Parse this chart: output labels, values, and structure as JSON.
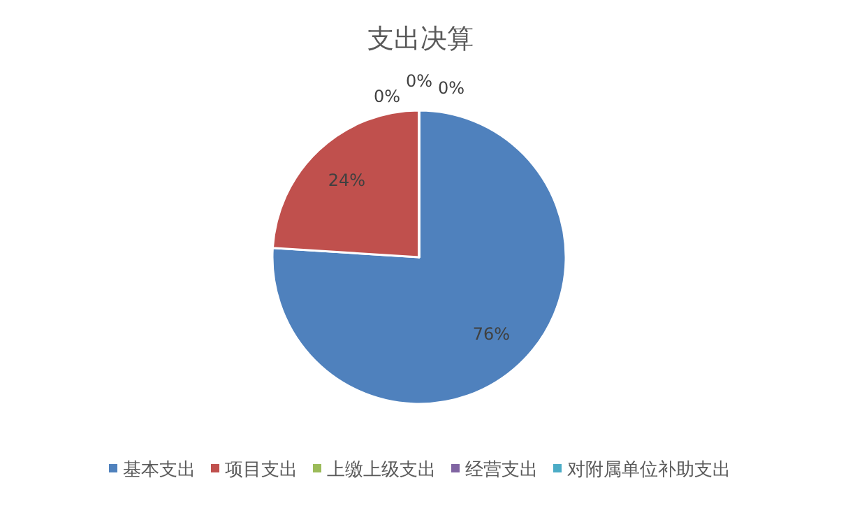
{
  "chart_data": {
    "type": "pie",
    "title": "支出决算",
    "categories": [
      "基本支出",
      "项目支出",
      "上缴上级支出",
      "经营支出",
      "对附属单位补助支出"
    ],
    "values": [
      76,
      24,
      0,
      0,
      0
    ],
    "colors": [
      "#4f81bd",
      "#c0504d",
      "#9bbb59",
      "#8064a2",
      "#4bacc6"
    ],
    "value_labels": [
      "76%",
      "24%",
      "0%",
      "0%",
      "0%"
    ],
    "legend": "bottom"
  }
}
